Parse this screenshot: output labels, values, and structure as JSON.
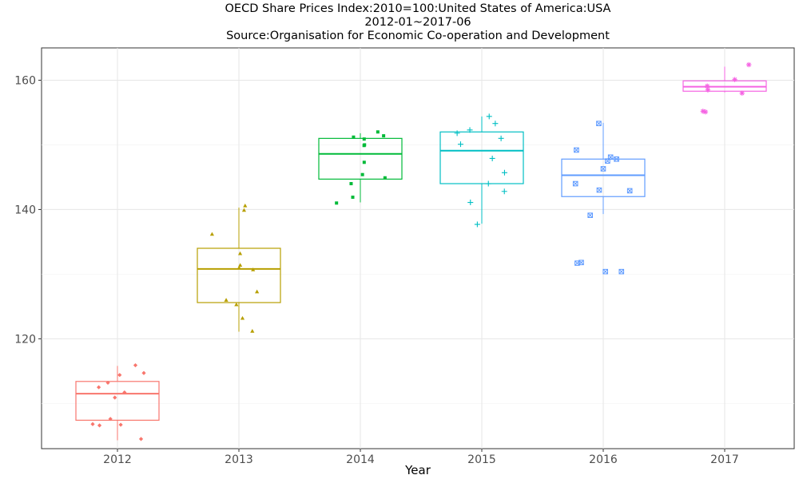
{
  "chart_data": {
    "type": "box",
    "title": "OECD Share Prices Index:2010=100:United States of America:USA",
    "subtitle": "2012-01~2017-06",
    "source": "Source:Organisation for Economic Co-operation and Development",
    "xlabel": "Year",
    "ylabel": "",
    "categories": [
      "2012",
      "2013",
      "2014",
      "2015",
      "2016",
      "2017"
    ],
    "ylim": [
      103,
      165
    ],
    "yticks": [
      120,
      140,
      160
    ],
    "grid": true,
    "legend": "none",
    "boxes": [
      {
        "category": "2012",
        "color": "#F8766D",
        "marker": "diamond",
        "min": 104.3,
        "q1": 107.4,
        "median": 111.5,
        "q3": 113.4,
        "max": 115.8,
        "points": [
          104.5,
          106.8,
          106.7,
          107.6,
          110.9,
          111.7,
          112.5,
          113.2,
          114.4,
          114.7,
          115.9,
          106.6
        ]
      },
      {
        "category": "2013",
        "color": "#B79F00",
        "marker": "triangle",
        "min": 121.1,
        "q1": 125.6,
        "median": 130.8,
        "q3": 134.0,
        "max": 140.3,
        "points": [
          121.2,
          123.2,
          125.3,
          126.0,
          127.3,
          130.7,
          131.0,
          131.4,
          133.2,
          136.2,
          139.9,
          140.6
        ]
      },
      {
        "category": "2014",
        "color": "#00BA38",
        "marker": "square",
        "min": 141.1,
        "q1": 144.7,
        "median": 148.6,
        "q3": 151.0,
        "max": 151.8,
        "points": [
          141.0,
          141.9,
          144.0,
          144.9,
          145.4,
          147.3,
          149.9,
          150.0,
          150.9,
          151.2,
          151.4,
          152.0
        ]
      },
      {
        "category": "2015",
        "color": "#00BFC4",
        "marker": "plus",
        "min": 137.8,
        "q1": 144.0,
        "median": 149.1,
        "q3": 152.0,
        "max": 154.4,
        "points": [
          137.7,
          141.1,
          142.8,
          144.0,
          145.7,
          147.9,
          150.1,
          151.0,
          151.8,
          152.3,
          153.3,
          154.4
        ]
      },
      {
        "category": "2016",
        "color": "#619CFF",
        "marker": "box-x",
        "min": 139.3,
        "q1": 142.0,
        "median": 145.3,
        "q3": 147.8,
        "max": 153.4,
        "points": [
          130.4,
          130.4,
          131.7,
          131.8,
          139.1,
          142.9,
          143.0,
          144.0,
          146.3,
          147.5,
          147.8,
          148.1,
          149.2,
          153.3
        ]
      },
      {
        "category": "2017",
        "color": "#F564E3",
        "marker": "asterisk",
        "min": 158.1,
        "q1": 158.3,
        "median": 159.0,
        "q3": 159.9,
        "max": 162.1,
        "points": [
          155.1,
          155.2,
          158.0,
          158.5,
          159.1,
          160.1,
          162.4
        ]
      }
    ]
  }
}
